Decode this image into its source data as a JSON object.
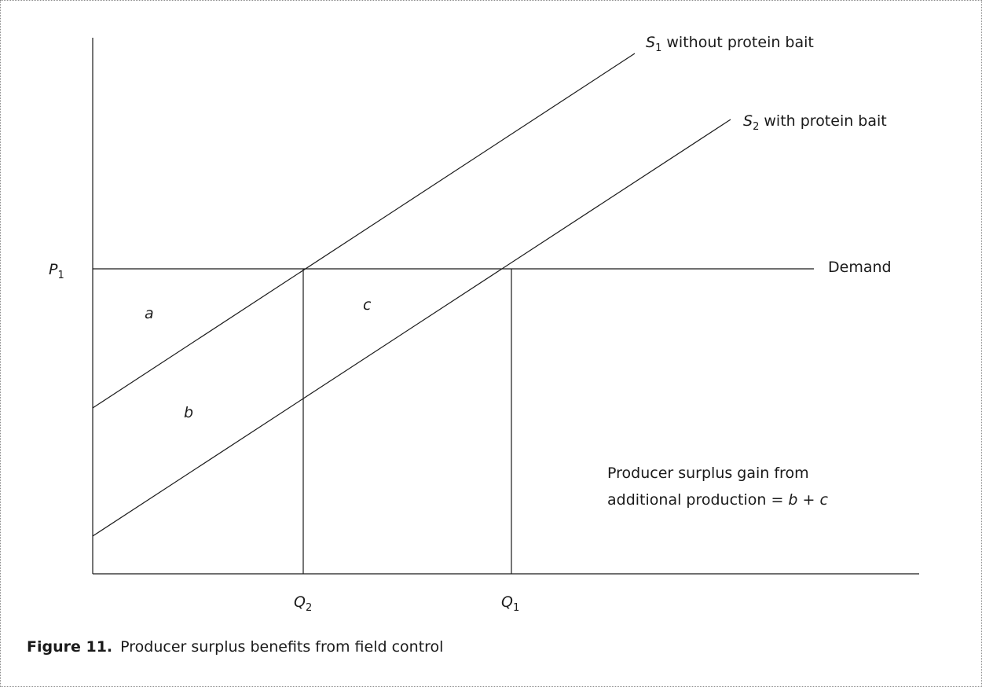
{
  "diagram": {
    "lines": {
      "s1": {
        "symbol": "S",
        "subscript": "1",
        "text": " without protein bait"
      },
      "s2": {
        "symbol": "S",
        "subscript": "2",
        "text": " with protein bait"
      },
      "demand": "Demand"
    },
    "axis_labels": {
      "p1": {
        "symbol": "P",
        "subscript": "1"
      },
      "q2": {
        "symbol": "Q",
        "subscript": "2"
      },
      "q1": {
        "symbol": "Q",
        "subscript": "1"
      }
    },
    "regions": {
      "a": "a",
      "b": "b",
      "c": "c"
    },
    "annotation": {
      "line1": "Producer surplus gain from",
      "line2_text": "additional production = ",
      "line2_b": "b",
      "line2_plus": " + ",
      "line2_c": "c"
    }
  },
  "caption": {
    "label": "Figure 11.",
    "text": "Producer surplus benefits from field control"
  }
}
